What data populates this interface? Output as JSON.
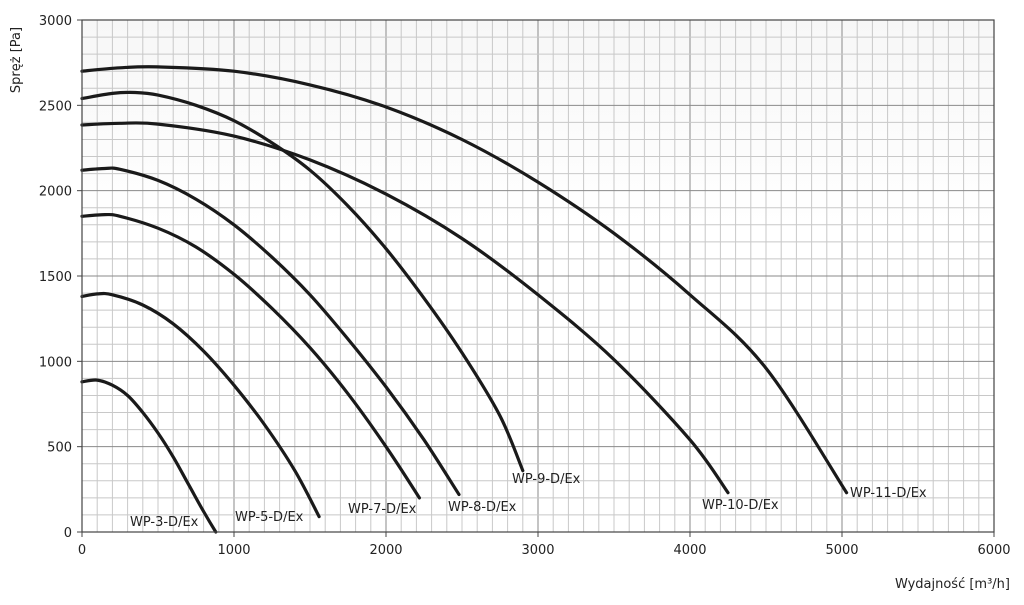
{
  "chart_data": {
    "type": "line",
    "title": "",
    "xlabel": "Wydajność [m³/h]",
    "ylabel": "Spręż [Pa]",
    "xlim": [
      0,
      6000
    ],
    "ylim": [
      0,
      3000
    ],
    "x_ticks": [
      0,
      1000,
      2000,
      3000,
      4000,
      5000,
      6000
    ],
    "y_ticks": [
      0,
      500,
      1000,
      1500,
      2000,
      2500,
      3000
    ],
    "x_tick_labels": [
      "0",
      "1000",
      "2000",
      "3000",
      "4000",
      "5000",
      "6000"
    ],
    "y_tick_labels": [
      "0",
      "500",
      "1000",
      "1500",
      "2000",
      "2500",
      "3000"
    ],
    "grid": true,
    "series": [
      {
        "name": "WP-3-D/Ex",
        "x": [
          0,
          100,
          200,
          300,
          400,
          500,
          600,
          700,
          800,
          880
        ],
        "y": [
          880,
          890,
          860,
          800,
          700,
          580,
          440,
          280,
          120,
          0
        ]
      },
      {
        "name": "WP-5-D/Ex",
        "x": [
          0,
          100,
          200,
          400,
          600,
          800,
          1000,
          1200,
          1400,
          1560
        ],
        "y": [
          1380,
          1395,
          1390,
          1330,
          1220,
          1060,
          860,
          630,
          360,
          90
        ]
      },
      {
        "name": "WP-7-D/Ex",
        "x": [
          0,
          150,
          250,
          500,
          750,
          1000,
          1250,
          1500,
          1750,
          2000,
          2220
        ],
        "y": [
          1850,
          1860,
          1850,
          1780,
          1670,
          1510,
          1310,
          1080,
          810,
          500,
          200
        ]
      },
      {
        "name": "WP-8-D/Ex",
        "x": [
          0,
          150,
          250,
          500,
          750,
          1000,
          1250,
          1500,
          1750,
          2000,
          2250,
          2480
        ],
        "y": [
          2120,
          2130,
          2125,
          2060,
          1950,
          1800,
          1610,
          1390,
          1130,
          850,
          540,
          220
        ]
      },
      {
        "name": "WP-9-D/Ex",
        "x": [
          0,
          200,
          350,
          500,
          750,
          1000,
          1250,
          1500,
          1750,
          2000,
          2250,
          2500,
          2750,
          2900
        ],
        "y": [
          2540,
          2570,
          2575,
          2560,
          2500,
          2410,
          2280,
          2120,
          1910,
          1660,
          1370,
          1050,
          680,
          360
        ]
      },
      {
        "name": "WP-10-D/Ex",
        "x": [
          0,
          250,
          500,
          1000,
          1500,
          2000,
          2500,
          3000,
          3500,
          4000,
          4250
        ],
        "y": [
          2385,
          2395,
          2390,
          2320,
          2180,
          1980,
          1720,
          1390,
          1010,
          540,
          230
        ]
      },
      {
        "name": "WP-11-D/Ex",
        "x": [
          0,
          250,
          500,
          1000,
          1500,
          2000,
          2500,
          3000,
          3500,
          4000,
          4500,
          5030
        ],
        "y": [
          2700,
          2720,
          2725,
          2700,
          2620,
          2490,
          2300,
          2050,
          1750,
          1390,
          960,
          230
        ]
      }
    ]
  }
}
